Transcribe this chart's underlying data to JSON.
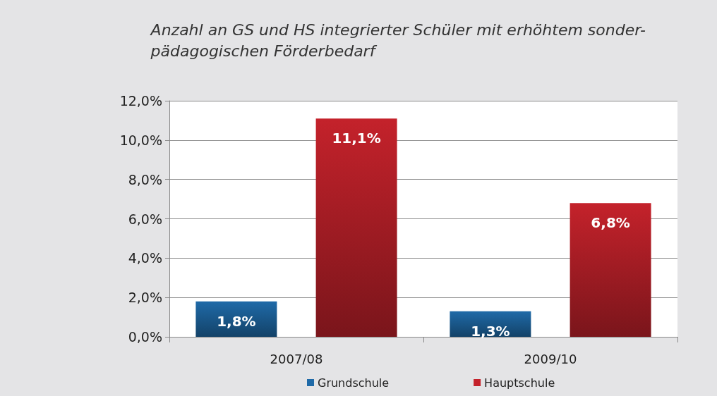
{
  "chart_data": {
    "type": "bar",
    "title": "Anzahl an GS und HS integrierter Schüler mit erhöhtem sonder-\npädagogischen Förderbedarf",
    "categories": [
      "2007/08",
      "2009/10"
    ],
    "series": [
      {
        "name": "Grundschule",
        "color": "#1f6aa8",
        "values": [
          1.8,
          1.3
        ],
        "value_labels": [
          "1,8%",
          "1,3%"
        ]
      },
      {
        "name": "Hauptschule",
        "color": "#c4222b",
        "values": [
          11.1,
          6.8
        ],
        "value_labels": [
          "11,1%",
          "6,8%"
        ]
      }
    ],
    "ylim": [
      0,
      12
    ],
    "yticks": [
      {
        "value": 0,
        "label": "0,0%"
      },
      {
        "value": 2,
        "label": "2,0%"
      },
      {
        "value": 4,
        "label": "4,0%"
      },
      {
        "value": 6,
        "label": "6,0%"
      },
      {
        "value": 8,
        "label": "8,0%"
      },
      {
        "value": 10,
        "label": "10,0%"
      },
      {
        "value": 12,
        "label": "12,0%"
      }
    ],
    "grid": "y",
    "legend": "bottom"
  }
}
